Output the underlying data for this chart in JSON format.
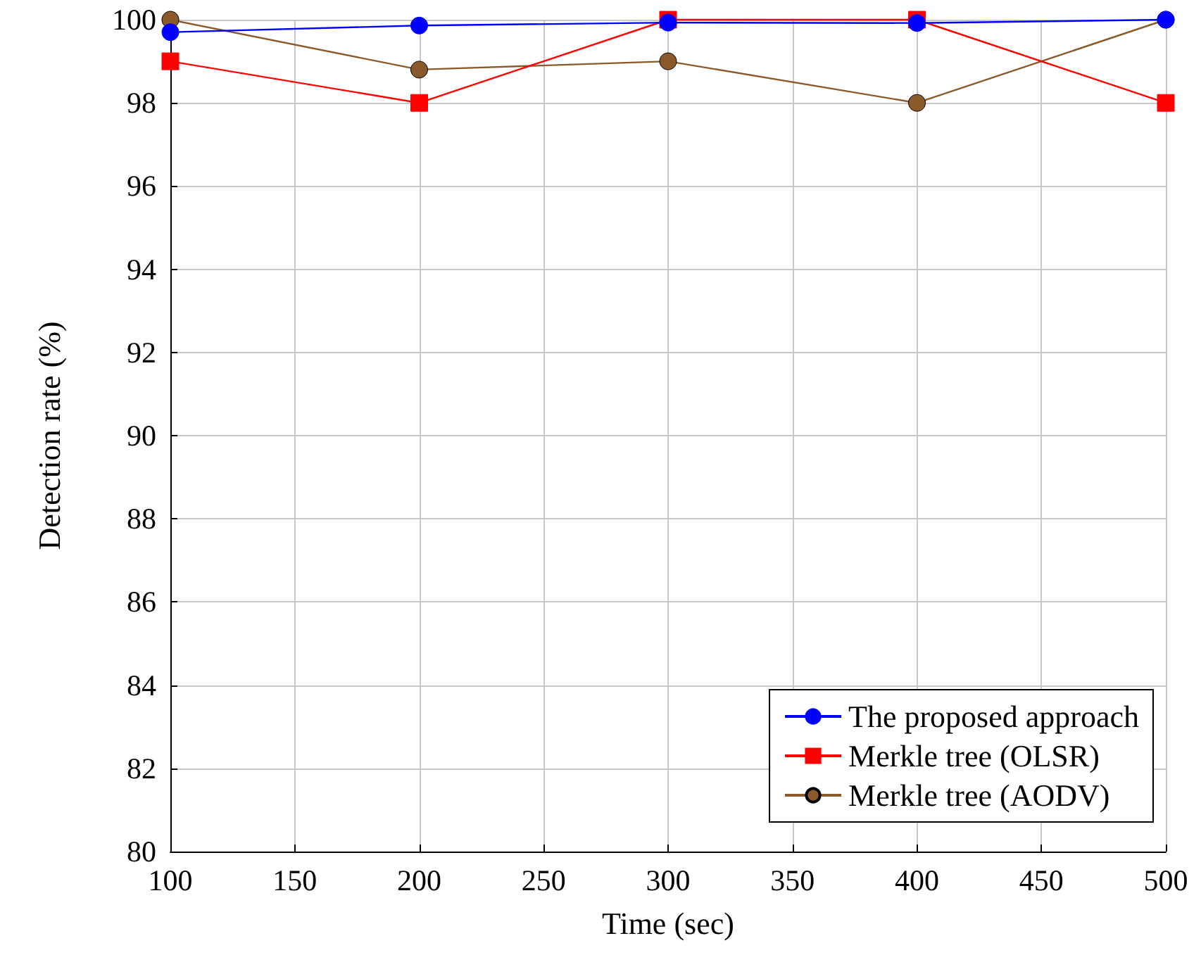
{
  "chart_data": {
    "type": "line",
    "xlabel": "Time (sec)",
    "ylabel": "Detection rate (%)",
    "x": [
      100,
      200,
      300,
      400,
      500
    ],
    "series": [
      {
        "name": "The proposed approach",
        "color": "#0000ff",
        "marker": "circle",
        "values": [
          99.7,
          99.86,
          99.93,
          99.92,
          100
        ]
      },
      {
        "name": "Merkle tree (OLSR)",
        "color": "#ff0000",
        "marker": "square",
        "values": [
          99,
          98,
          100,
          100,
          98
        ]
      },
      {
        "name": "Merkle tree (AODV)",
        "color": "#8b5a2b",
        "marker": "circle",
        "values": [
          100,
          98.8,
          99,
          98,
          100
        ]
      }
    ],
    "xlim": [
      100,
      500
    ],
    "xticks": [
      100,
      150,
      200,
      250,
      300,
      350,
      400,
      450,
      500
    ],
    "ylim": [
      80,
      100
    ],
    "yticks": [
      80,
      82,
      84,
      86,
      88,
      90,
      92,
      94,
      96,
      98,
      100
    ],
    "grid": true,
    "legend": "bottom right",
    "line_style": "solid"
  }
}
